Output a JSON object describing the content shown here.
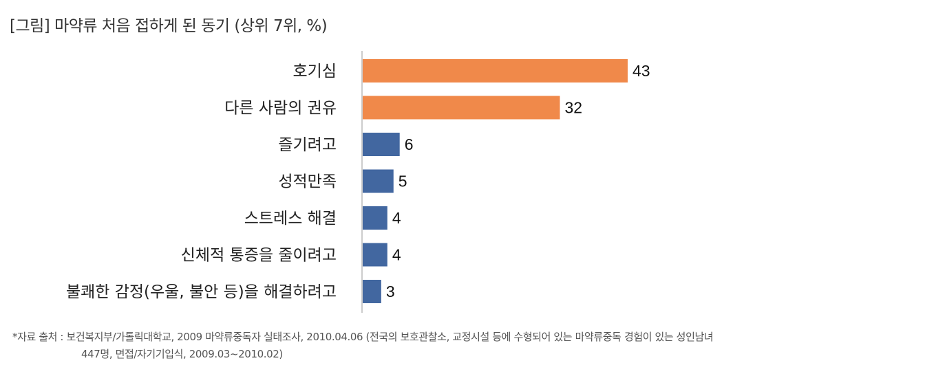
{
  "title": "[그림] 마약류 처음 접하게 된 동기 (상위 7위, %)",
  "chart_data": {
    "type": "bar",
    "orientation": "horizontal",
    "categories": [
      "호기심",
      "다른 사람의 권유",
      "즐기려고",
      "성적만족",
      "스트레스 해결",
      "신체적 통증을 줄이려고",
      "불쾌한 감정(우울, 불안 등)을 해결하려고"
    ],
    "values": [
      43,
      32,
      6,
      5,
      4,
      4,
      3
    ],
    "xlim": [
      0,
      45
    ],
    "grid": false,
    "colors": [
      "#F0894A",
      "#F0894A",
      "#4267A0",
      "#4267A0",
      "#4267A0",
      "#4267A0",
      "#4267A0"
    ]
  },
  "source": {
    "line1": "*자료 출처 : 보건복지부/가톨릭대학교, 2009 마약류중독자 실태조사, 2010.04.06 (전국의 보호관찰소, 교정시설 등에 수형되어 있는 마약류중독 경험이 있는 성인남녀",
    "line2": "447명, 면접/자기기입식, 2009.03~2010.02)"
  }
}
